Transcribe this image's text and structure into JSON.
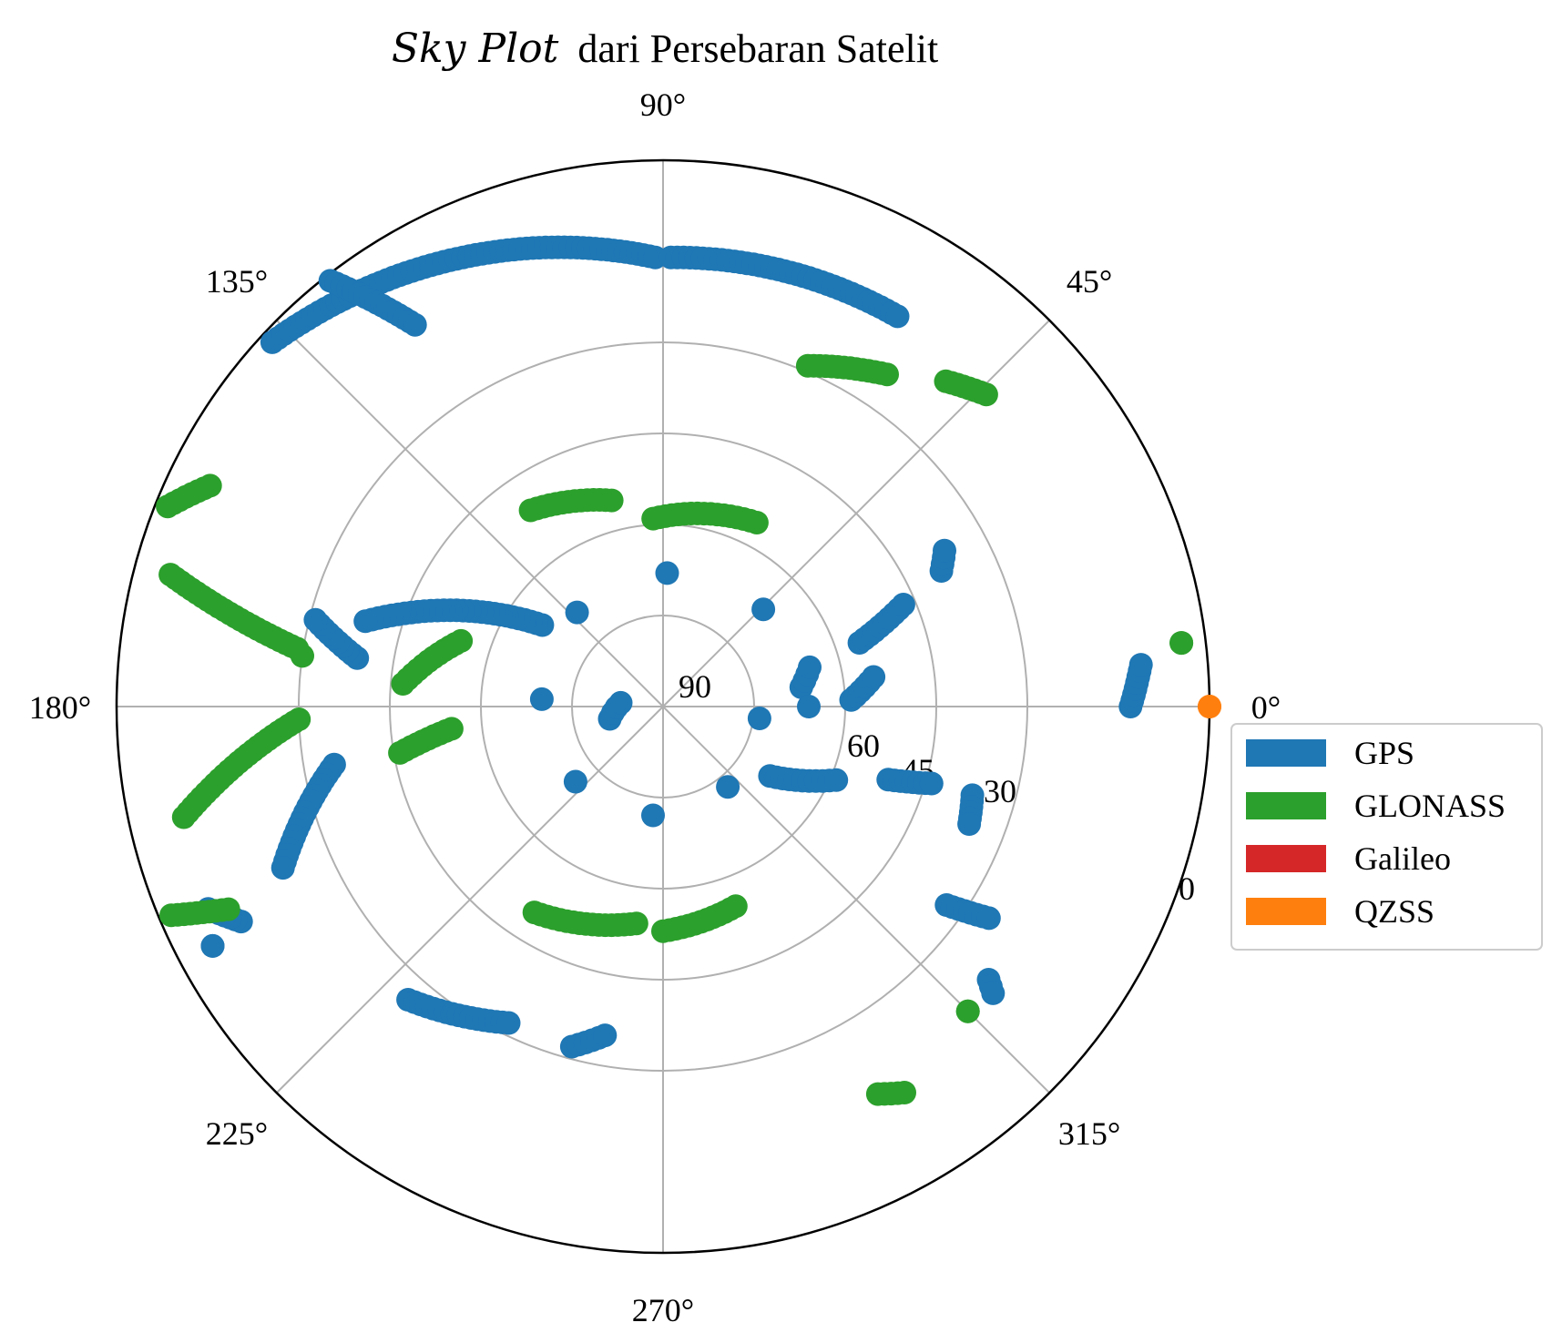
{
  "chart_data": {
    "type": "scatter",
    "projection": "polar-skyplot",
    "title_italic": "Sky Plot",
    "title_rest": "dari Persebaran Satelit",
    "azimuth_ticks": [
      "0°",
      "45°",
      "90°",
      "135°",
      "180°",
      "225°",
      "270°",
      "315°"
    ],
    "elevation_ticks": [
      {
        "value": 90,
        "label": "90"
      },
      {
        "value": 60,
        "label": "60"
      },
      {
        "value": 45,
        "label": "45"
      },
      {
        "value": 30,
        "label": "30"
      },
      {
        "value": 0,
        "label": "0"
      }
    ],
    "grid_elevations": [
      75,
      60,
      45,
      30
    ],
    "grid": true,
    "legend_position": "right",
    "series": [
      {
        "name": "GPS",
        "color": "#1f77b4",
        "tracks": [
          {
            "start": [
              137,
              2
            ],
            "end": [
              91,
              16
            ]
          },
          {
            "start": [
              89,
              16
            ],
            "end": [
              59,
              15
            ]
          },
          {
            "start": [
              128,
              1
            ],
            "end": [
              123,
              15
            ]
          },
          {
            "start": [
              146,
              66
            ],
            "end": [
              164,
              39
            ]
          },
          {
            "start": [
              171,
              39
            ],
            "end": [
              166,
              31
            ]
          },
          {
            "start": [
              190,
              35
            ],
            "end": [
              203,
              22
            ]
          },
          {
            "start": [
              207,
              12
            ],
            "end": [
              204,
              8
            ]
          },
          {
            "start": [
              229,
              26
            ],
            "end": [
              244,
              32
            ]
          },
          {
            "start": [
              255,
              32
            ],
            "end": [
              260,
              35
            ]
          },
          {
            "start": [
              208,
              6
            ],
            "end": [
              208,
              6
            ]
          },
          {
            "start": [
              193,
              81
            ],
            "end": [
              175,
              83
            ]
          },
          {
            "start": [
              8,
              67
            ],
            "end": [
              15,
              65
            ]
          },
          {
            "start": [
              18,
              56
            ],
            "end": [
              23,
              47
            ]
          },
          {
            "start": [
              26,
              39
            ],
            "end": [
              29,
              37
            ]
          },
          {
            "start": [
              353,
              74
            ],
            "end": [
              0,
              66
            ]
          },
          {
            "start": [
              2,
              59
            ],
            "end": [
              8,
              55
            ]
          },
          {
            "start": [
              327,
              69
            ],
            "end": [
              337,
              59
            ]
          },
          {
            "start": [
              342,
              51
            ],
            "end": [
              344,
              44
            ]
          },
          {
            "start": [
              344,
              37
            ],
            "end": [
              339,
              36
            ]
          },
          {
            "start": [
              325,
              33
            ],
            "end": [
              327,
              26
            ]
          },
          {
            "start": [
              320,
              20
            ],
            "end": [
              319,
              18
            ]
          },
          {
            "start": [
              0,
              13
            ],
            "end": [
              5,
              11
            ]
          }
        ]
      },
      {
        "name": "GLONASS",
        "color": "#2ca02c",
        "tracks": [
          {
            "start": [
              67,
              29
            ],
            "end": [
              56,
              24
            ]
          },
          {
            "start": [
              49,
              19
            ],
            "end": [
              44,
              16
            ]
          },
          {
            "start": [
              124,
              51
            ],
            "end": [
              104,
              55
            ]
          },
          {
            "start": [
              93,
              59
            ],
            "end": [
              63,
              56
            ]
          },
          {
            "start": [
              172,
              30
            ],
            "end": [
              172,
              30
            ]
          },
          {
            "start": [
              175,
              47
            ],
            "end": [
              162,
              55
            ]
          },
          {
            "start": [
              158,
              2
            ],
            "end": [
              154,
              7
            ]
          },
          {
            "start": [
              165,
              6
            ],
            "end": [
              171,
              29
            ]
          },
          {
            "start": [
              193,
              9
            ],
            "end": [
              182,
              30
            ]
          },
          {
            "start": [
              203,
              2
            ],
            "end": [
              205,
              11
            ]
          },
          {
            "start": [
              190,
              46
            ],
            "end": [
              186,
              55
            ]
          },
          {
            "start": [
              238,
              50
            ],
            "end": [
              263,
              54
            ]
          },
          {
            "start": [
              270,
              53
            ],
            "end": [
              290,
              55
            ]
          },
          {
            "start": [
              302,
              15
            ],
            "end": [
              299,
              17
            ]
          },
          {
            "start": [
              315,
              19
            ],
            "end": [
              315,
              19
            ]
          },
          {
            "start": [
              7,
              4
            ],
            "end": [
              7,
              4
            ]
          }
        ]
      },
      {
        "name": "Galileo",
        "color": "#d62728",
        "tracks": []
      },
      {
        "name": "QZSS",
        "color": "#ff7f0e",
        "tracks": [
          {
            "start": [
              0,
              0
            ],
            "end": [
              0,
              0
            ]
          }
        ]
      }
    ]
  }
}
